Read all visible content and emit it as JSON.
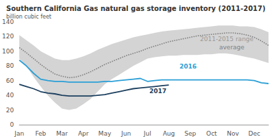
{
  "chart_data": {
    "type": "line",
    "title": "Southern California Gas natural gas storage inventory (2011-2017)",
    "subtitle": "billion cubic feet",
    "categories": [
      "Jan",
      null,
      null,
      "Feb",
      null,
      null,
      "Mar",
      null,
      null,
      "Apr",
      null,
      null,
      "May",
      null,
      null,
      "Jun",
      null,
      null,
      "Jul",
      null,
      null,
      "Aug",
      null,
      null,
      "Sep",
      null,
      null,
      "Oct",
      null,
      null,
      "Nov",
      null,
      null,
      "Dec",
      null,
      null
    ],
    "ylim": [
      0,
      140
    ],
    "yticks": [
      0,
      20,
      40,
      60,
      80,
      100,
      120,
      140
    ],
    "grid": false,
    "series": [
      {
        "name": "2011-2015 range",
        "type": "range",
        "color": "#d4d4d4",
        "low": [
          90,
          80,
          65,
          52,
          40,
          30,
          22,
          20,
          22,
          28,
          35,
          45,
          55,
          62,
          68,
          74,
          80,
          85,
          90,
          92,
          93,
          94,
          94,
          95,
          95,
          95,
          96,
          96,
          97,
          97,
          96,
          94,
          92,
          90,
          87,
          84
        ],
        "high": [
          122,
          115,
          108,
          100,
          95,
          90,
          88,
          88,
          90,
          93,
          97,
          102,
          106,
          110,
          113,
          116,
          119,
          121,
          123,
          125,
          127,
          128,
          129,
          130,
          131,
          132,
          133,
          134,
          135,
          135,
          135,
          134,
          134,
          133,
          130,
          126
        ]
      },
      {
        "name": "average",
        "color": "#808080",
        "line_style": "dotted",
        "values": [
          105,
          98,
          90,
          82,
          75,
          69,
          66,
          64,
          65,
          68,
          72,
          77,
          82,
          86,
          90,
          94,
          97,
          100,
          104,
          107,
          110,
          113,
          115,
          117,
          119,
          121,
          122,
          123,
          124,
          125,
          125,
          124,
          122,
          119,
          114,
          108
        ]
      },
      {
        "name": "2016",
        "color": "#2a9fd6",
        "line_style": "solid",
        "values": [
          88,
          80,
          70,
          62,
          60,
          59,
          59,
          58,
          58,
          58,
          58,
          58,
          59,
          59,
          60,
          61,
          62,
          63,
          59,
          60,
          61,
          61,
          61,
          61,
          61,
          61,
          61,
          61,
          61,
          61,
          61,
          61,
          61,
          60,
          57,
          56
        ]
      },
      {
        "name": "2017",
        "color": "#1c3f5e",
        "line_style": "solid",
        "values": [
          55,
          52,
          49,
          45,
          43,
          42,
          40,
          39,
          39,
          39,
          39,
          40,
          41,
          43,
          45,
          47,
          49,
          50,
          51,
          52,
          53,
          54,
          null,
          null,
          null,
          null,
          null,
          null,
          null,
          null,
          null,
          null,
          null,
          null,
          null,
          null
        ]
      }
    ]
  }
}
